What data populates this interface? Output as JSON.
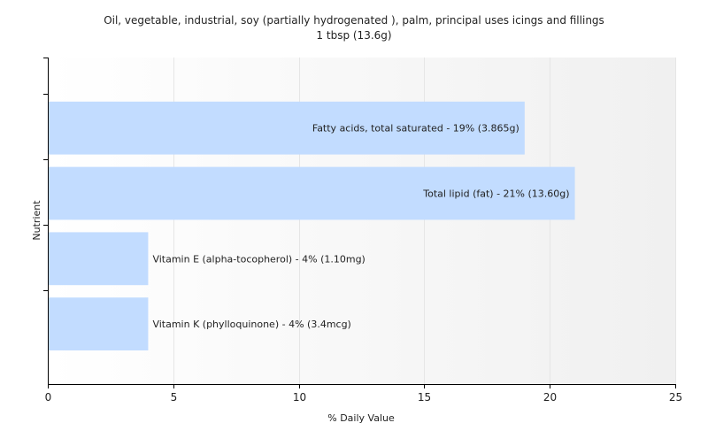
{
  "chart_data": {
    "type": "bar",
    "orientation": "horizontal",
    "title": "Oil, vegetable, industrial, soy (partially hydrogenated ), palm, principal uses icings and fillings",
    "subtitle": "1 tbsp (13.6g)",
    "xlabel": "% Daily Value",
    "ylabel": "Nutrient",
    "xlim": [
      0,
      25
    ],
    "x_ticks": [
      "0",
      "5",
      "10",
      "15",
      "20",
      "25"
    ],
    "grid": "vertical",
    "bars": [
      {
        "label": "Fatty acids, total saturated - 19% (3.865g)",
        "value": 19
      },
      {
        "label": "Total lipid (fat) - 21% (13.60g)",
        "value": 21
      },
      {
        "label": "Vitamin E (alpha-tocopherol) - 4% (1.10mg)",
        "value": 4
      },
      {
        "label": "Vitamin K (phylloquinone) - 4% (3.4mcg)",
        "value": 4
      }
    ],
    "colors": {
      "bar": "#c2dcff",
      "grid": "#e6e6e6",
      "axis": "#000000",
      "text": "#222222"
    }
  }
}
